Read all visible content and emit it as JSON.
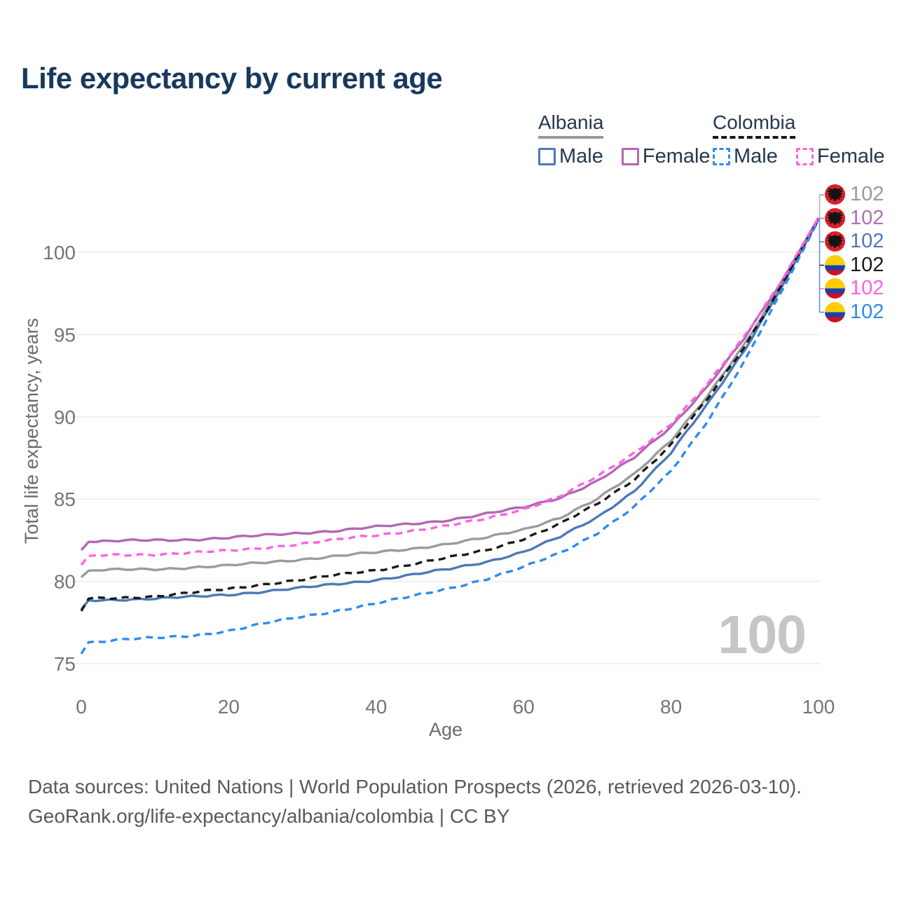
{
  "title": "Life expectancy by current age",
  "legend": {
    "groups": [
      {
        "name": "Albania",
        "line_style": "solid",
        "underline_color": "#9b9b9b",
        "items": [
          {
            "label": "Male",
            "color": "#4d79b5"
          },
          {
            "label": "Female",
            "color": "#b168b1"
          }
        ]
      },
      {
        "name": "Colombia",
        "line_style": "dashed",
        "underline_color": "#1a1a1a",
        "items": [
          {
            "label": "Male",
            "color": "#2e8bf0"
          },
          {
            "label": "Female",
            "color": "#fb63e1"
          }
        ]
      }
    ]
  },
  "chart_data": {
    "type": "line",
    "title": "Life expectancy by current age",
    "xlabel": "Age",
    "ylabel": "Total life expectancy, years",
    "xlim": [
      0,
      100
    ],
    "ylim": [
      74,
      103
    ],
    "xticks": [
      0,
      20,
      40,
      60,
      80,
      100
    ],
    "yticks": [
      75,
      80,
      85,
      90,
      95,
      100
    ],
    "grid": "horizontal",
    "legend_position": "top-right",
    "watermark": "100",
    "x": [
      0,
      1,
      5,
      10,
      15,
      20,
      25,
      30,
      35,
      40,
      45,
      50,
      55,
      60,
      65,
      70,
      75,
      80,
      85,
      90,
      95,
      100
    ],
    "series": [
      {
        "name": "Albania Total",
        "country": "Albania",
        "sex": "Total",
        "color": "#9b9b9b",
        "dash": null,
        "values": [
          80.25,
          80.65,
          80.7,
          80.75,
          80.85,
          80.95,
          81.15,
          81.35,
          81.55,
          81.75,
          82.0,
          82.3,
          82.65,
          83.15,
          83.9,
          85.0,
          86.5,
          88.6,
          91.3,
          94.4,
          98.0,
          102.05
        ]
      },
      {
        "name": "Albania Male",
        "country": "Albania",
        "sex": "Male",
        "color": "#4d79b5",
        "dash": null,
        "values": [
          78.3,
          78.85,
          78.9,
          78.95,
          79.05,
          79.2,
          79.4,
          79.6,
          79.85,
          80.1,
          80.4,
          80.75,
          81.2,
          81.8,
          82.7,
          83.9,
          85.5,
          87.8,
          90.8,
          94.1,
          97.9,
          102.0
        ]
      },
      {
        "name": "Albania Female",
        "country": "Albania",
        "sex": "Female",
        "color": "#b168b1",
        "dash": null,
        "values": [
          81.9,
          82.4,
          82.45,
          82.5,
          82.55,
          82.65,
          82.8,
          82.95,
          83.1,
          83.3,
          83.5,
          83.75,
          84.1,
          84.5,
          85.1,
          86.1,
          87.5,
          89.4,
          91.9,
          94.8,
          98.2,
          102.1
        ]
      },
      {
        "name": "Colombia Total",
        "country": "Colombia",
        "sex": "Total",
        "color": "#1a1a1a",
        "dash": "10 7",
        "values": [
          78.2,
          78.95,
          79.0,
          79.1,
          79.3,
          79.55,
          79.85,
          80.1,
          80.4,
          80.7,
          81.05,
          81.45,
          81.9,
          82.6,
          83.5,
          84.7,
          86.2,
          88.3,
          91.1,
          94.3,
          98.0,
          102.0
        ]
      },
      {
        "name": "Colombia Male",
        "country": "Colombia",
        "sex": "Male",
        "color": "#2e8bf0",
        "dash": "10 7",
        "values": [
          75.6,
          76.3,
          76.45,
          76.55,
          76.7,
          77.0,
          77.45,
          77.85,
          78.25,
          78.65,
          79.1,
          79.6,
          80.15,
          80.85,
          81.75,
          82.95,
          84.5,
          86.7,
          89.8,
          93.4,
          97.6,
          101.95
        ]
      },
      {
        "name": "Colombia Female",
        "country": "Colombia",
        "sex": "Female",
        "color": "#fb63e1",
        "dash": "10 7",
        "values": [
          81.0,
          81.55,
          81.6,
          81.65,
          81.75,
          81.85,
          82.05,
          82.3,
          82.55,
          82.8,
          83.1,
          83.4,
          83.8,
          84.4,
          85.2,
          86.35,
          87.8,
          89.6,
          92.0,
          94.9,
          98.3,
          102.1
        ]
      }
    ]
  },
  "end_labels": [
    {
      "flag": "albania",
      "value": "102",
      "color": "#9a9a9a",
      "series": "Albania Total"
    },
    {
      "flag": "albania",
      "value": "102",
      "color": "#b06fb2",
      "series": "Albania Female"
    },
    {
      "flag": "albania",
      "value": "102",
      "color": "#4d79b5",
      "series": "Albania Male"
    },
    {
      "flag": "colombia",
      "value": "102",
      "color": "#1a1a1a",
      "series": "Colombia Total"
    },
    {
      "flag": "colombia",
      "value": "102",
      "color": "#fb63e1",
      "series": "Colombia Female"
    },
    {
      "flag": "colombia",
      "value": "102",
      "color": "#2e8bf0",
      "series": "Colombia Male"
    }
  ],
  "flags": {
    "albania": {
      "circle": "#dc1f26",
      "emblem": "#141414"
    },
    "colombia": {
      "top": "#FFCD00",
      "mid": "#1643AD",
      "bottom": "#CE1126"
    }
  },
  "footer": {
    "line1": "Data sources: United Nations | World Population Prospects (2026, retrieved 2026-03-10).",
    "line2": "GeoRank.org/life-expectancy/albania/colombia | CC BY"
  }
}
